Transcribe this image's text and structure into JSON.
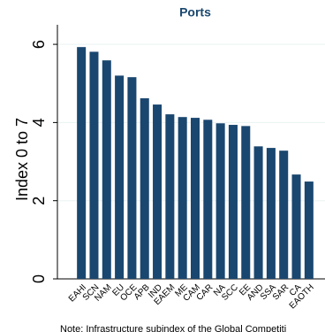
{
  "chart_data": {
    "type": "bar",
    "title": "Ports",
    "y_label": "Index 0 to 7",
    "categories": [
      "EAHI",
      "SCN",
      "NAM",
      "EU",
      "OCE",
      "APB",
      "IND",
      "EAEM",
      "ME",
      "CAM",
      "CAR",
      "NA",
      "SCC",
      "EE",
      "AND",
      "SSA",
      "SAR",
      "CA",
      "EAOTH"
    ],
    "values": [
      5.93,
      5.81,
      5.59,
      5.2,
      5.16,
      4.62,
      4.46,
      4.21,
      4.14,
      4.12,
      4.07,
      3.98,
      3.94,
      3.91,
      3.39,
      3.35,
      3.28,
      2.67,
      2.49
    ],
    "color": "#1a476f",
    "ylim": [
      0,
      6.5
    ],
    "yticks": [
      0,
      2,
      4,
      6
    ],
    "grid": true,
    "note": "Note: Infrastructure subindex of the Global Competiti"
  }
}
